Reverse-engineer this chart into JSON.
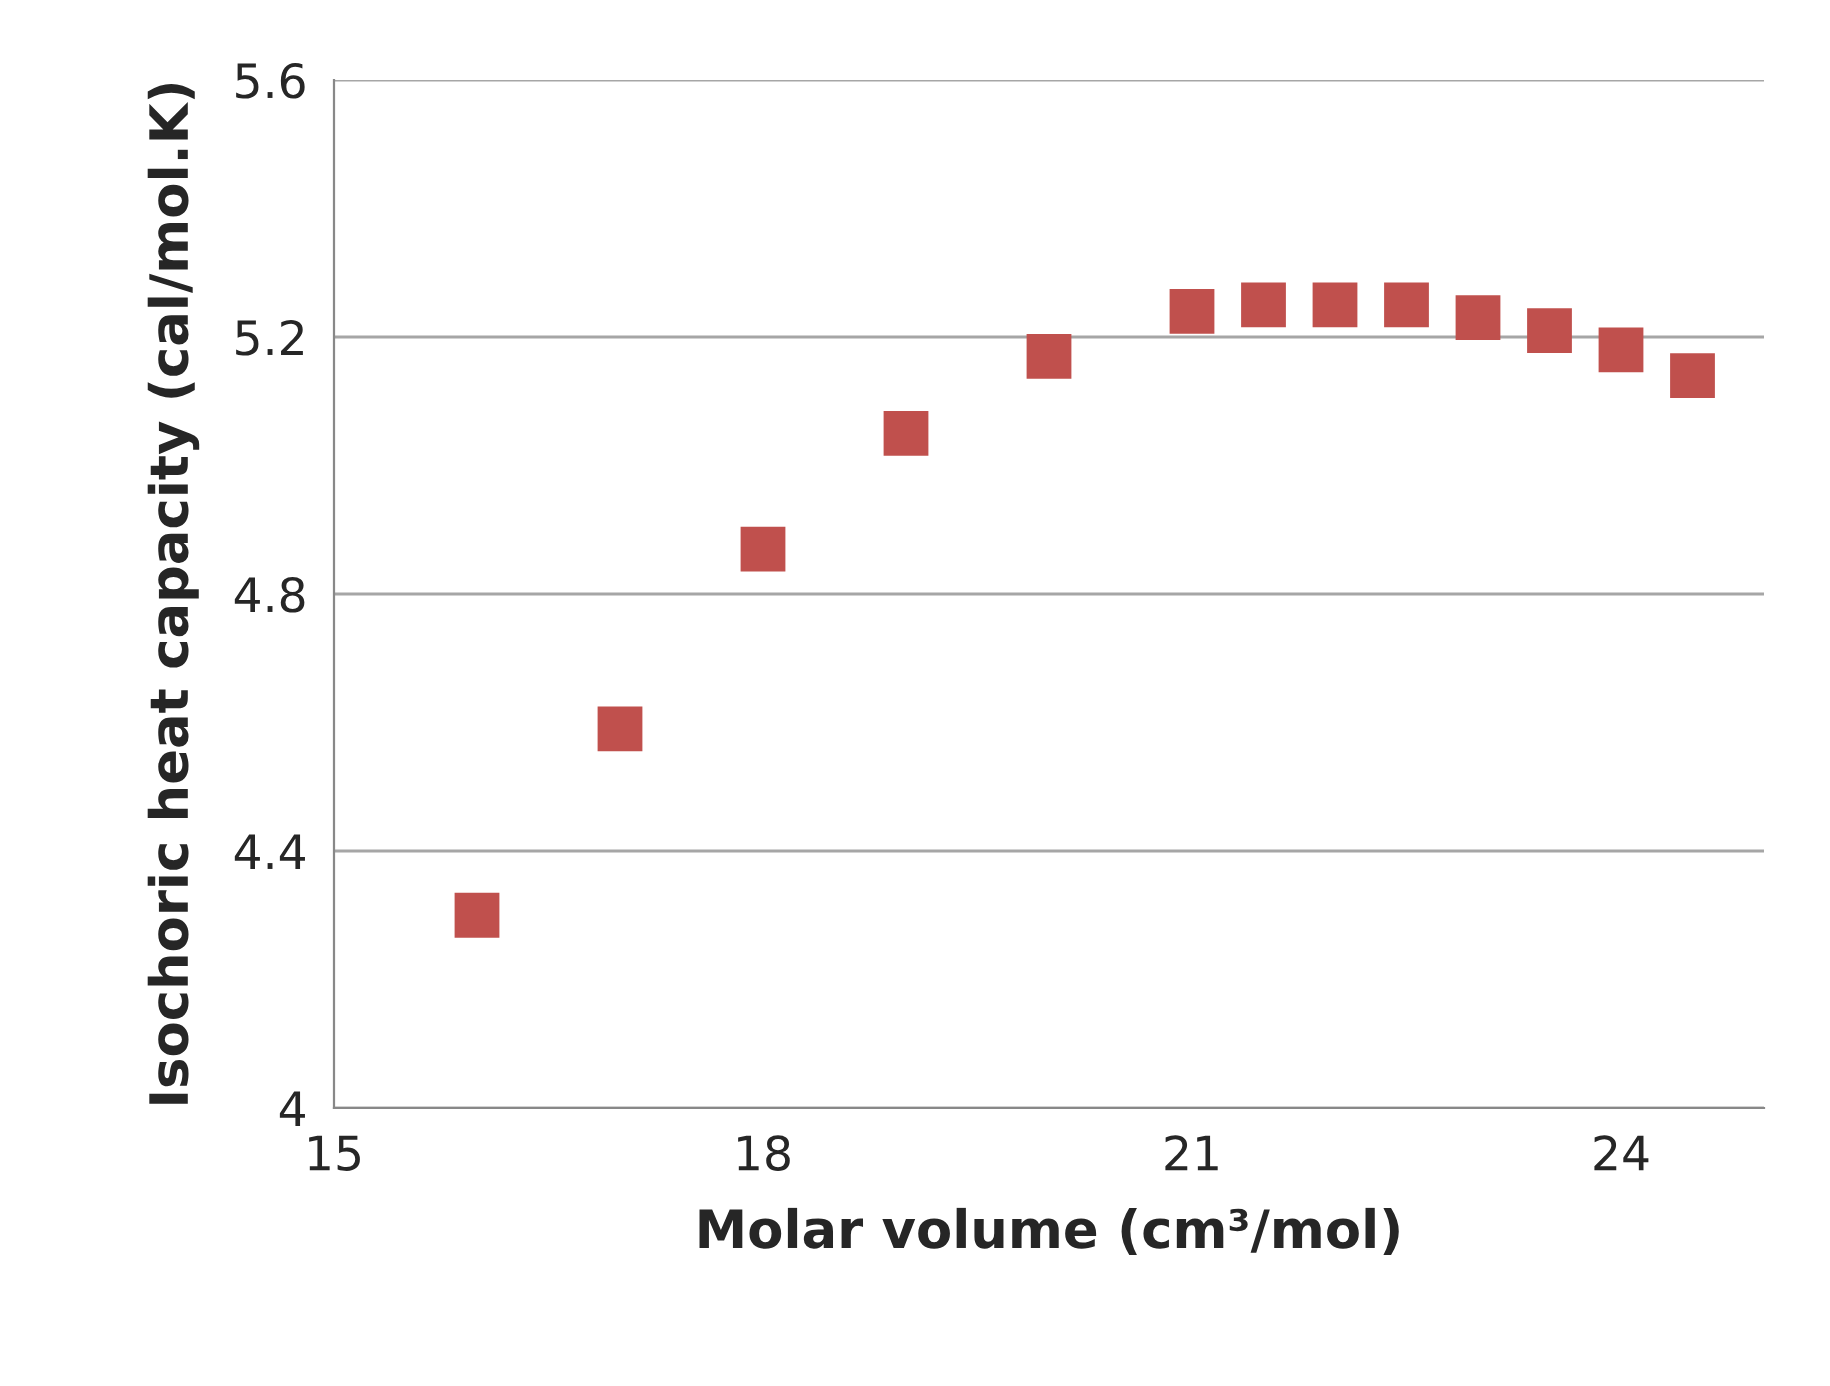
{
  "chart_data": {
    "type": "scatter",
    "xlabel": "Molar volume (cm³/mol)",
    "ylabel": "Isochoric heat capacity (cal/mol.K)",
    "x": [
      16,
      17,
      18,
      19,
      20,
      21,
      21.5,
      22,
      22.5,
      23,
      23.5,
      24,
      24.5
    ],
    "series": [
      {
        "color": "#c0504d",
        "values": [
          4.3,
          4.59,
          4.87,
          5.05,
          5.17,
          5.24,
          5.25,
          5.25,
          5.25,
          5.23,
          5.21,
          5.18,
          5.14
        ]
      }
    ],
    "xlim": [
      15,
      25
    ],
    "xticks": [
      15,
      18,
      21,
      24
    ],
    "ylim": [
      4,
      5.6
    ],
    "yticks": [
      4,
      4.4,
      4.8,
      5.2,
      5.6
    ],
    "grid": "y",
    "marker": "square",
    "legend": false
  }
}
